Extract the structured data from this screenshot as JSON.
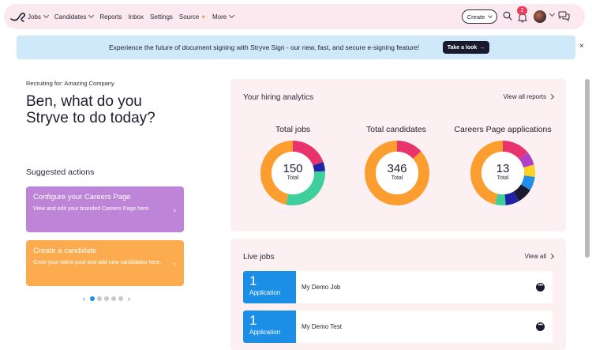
{
  "nav": {
    "items": [
      {
        "label": "Jobs",
        "dropdown": true
      },
      {
        "label": "Candidates",
        "dropdown": true
      },
      {
        "label": "Reports",
        "dropdown": false
      },
      {
        "label": "Inbox",
        "dropdown": false
      },
      {
        "label": "Settings",
        "dropdown": false
      },
      {
        "label": "Source",
        "dropdown": false
      },
      {
        "label": "More",
        "dropdown": true
      }
    ],
    "create_label": "Create",
    "notification_count": "2",
    "icons": [
      "logo-icon",
      "search-icon",
      "bell-icon",
      "avatar",
      "chat-icon"
    ]
  },
  "banner": {
    "text": "Experience the future of document signing with Stryve Sign - our new, fast, and secure e-signing feature!",
    "button_label": "Take a look",
    "close_label": "×"
  },
  "left": {
    "recruiting_for": "Recruiting for: Amazing Company",
    "greeting": "Ben, what do you Stryve to do today?",
    "suggested_title": "Suggested actions",
    "cards": [
      {
        "title": "Configure your Careers Page",
        "subtitle": "View and edit your branded Careers Page here."
      },
      {
        "title": "Create a candidate",
        "subtitle": "Grow your talent pool and add new candidates here."
      }
    ],
    "carousel": {
      "pages": 5,
      "active": 1
    }
  },
  "analytics": {
    "title": "Your hiring analytics",
    "link": "View all reports",
    "stats": [
      {
        "title": "Total jobs",
        "value": "150",
        "label": "Total"
      },
      {
        "title": "Total candidates",
        "value": "346",
        "label": "Total"
      },
      {
        "title": "Careers Page applications",
        "value": "13",
        "label": "Total"
      }
    ]
  },
  "chart_data": [
    {
      "type": "pie",
      "title": "Total jobs",
      "total": 150,
      "series": [
        {
          "value": 29,
          "color": "#e8336d"
        },
        {
          "value": 7,
          "color": "#1f24a6"
        },
        {
          "value": 44,
          "color": "#3ecf9c"
        },
        {
          "value": 70,
          "color": "#fb9e2f"
        }
      ]
    },
    {
      "type": "pie",
      "title": "Total candidates",
      "total": 346,
      "series": [
        {
          "value": 46,
          "color": "#e8336d"
        },
        {
          "value": 300,
          "color": "#fb9e2f"
        }
      ]
    },
    {
      "type": "pie",
      "title": "Careers Page applications",
      "total": 13,
      "series": [
        {
          "value": 1.8,
          "color": "#e8336d"
        },
        {
          "value": 0.9,
          "color": "#b040c8"
        },
        {
          "value": 0.8,
          "color": "#ffd026"
        },
        {
          "value": 0.9,
          "color": "#1f8fe8"
        },
        {
          "value": 1.0,
          "color": "#1a1a2e"
        },
        {
          "value": 0.9,
          "color": "#1f24a6"
        },
        {
          "value": 0.7,
          "color": "#3ecf9c"
        },
        {
          "value": 6.0,
          "color": "#fb9e2f"
        }
      ]
    }
  ],
  "live_jobs": {
    "title": "Live jobs",
    "link": "View all",
    "rows": [
      {
        "count": "1",
        "count_label": "Application",
        "name": "My Demo Job"
      },
      {
        "count": "1",
        "count_label": "Application",
        "name": "My Demo Test"
      }
    ]
  },
  "colors": {
    "accent_blue": "#1b8fe6",
    "pink_bg": "#fdf0f3",
    "banner_bg": "#cfe9fa",
    "card_purple": "#bd84d8",
    "card_orange": "#fcac4e"
  }
}
